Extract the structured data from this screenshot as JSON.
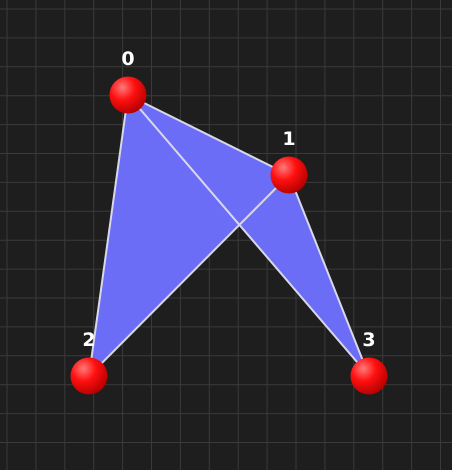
{
  "background_color": "#1e1e1e",
  "grid_color": "#3a3a3a",
  "polygon_fill_color": "#6b6df7",
  "edge_color": "#d8d8e8",
  "vertex_color": "#ff0000",
  "label_color": "#ffffff",
  "vertices": [
    {
      "label": "0"
    },
    {
      "label": "1"
    },
    {
      "label": "2"
    },
    {
      "label": "3"
    }
  ]
}
